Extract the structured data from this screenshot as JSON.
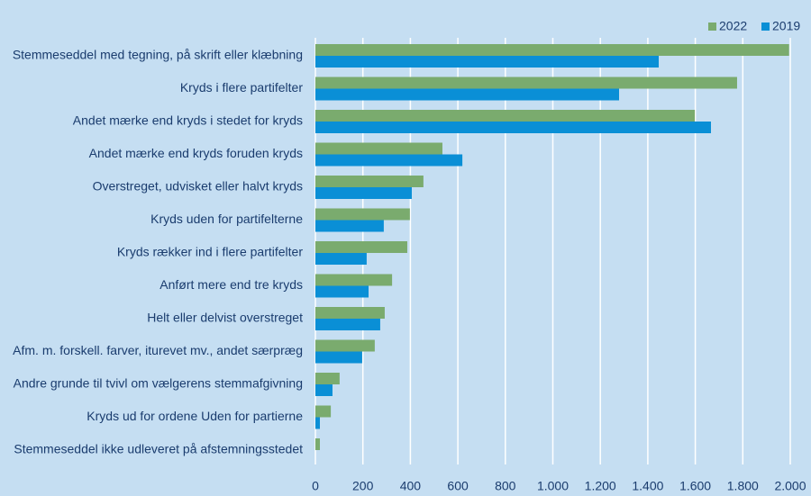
{
  "chart_data": {
    "type": "hbar",
    "categories": [
      "Stemmeseddel med tegning, på skrift eller klæbning",
      "Kryds i flere partifelter",
      "Andet mærke end kryds i stedet for kryds",
      "Andet mærke end kryds foruden kryds",
      "Overstreget, udvisket eller halvt kryds",
      "Kryds uden for partifelterne",
      "Kryds rækker ind i flere partifelter",
      "Anført mere end tre kryds",
      "Helt eller delvist overstreget",
      "Afm. m. forskell. farver, iturevet mv., andet særpræg",
      "Andre grunde til tvivl om vælgerens stemmafgivning",
      "Kryds ud for ordene Uden for partierne",
      "Stemmeseddel ikke udleveret på afstemningsstedet"
    ],
    "series": [
      {
        "name": "2022",
        "color": "#7aab6e",
        "values": [
          1995,
          1776,
          1598,
          535,
          455,
          398,
          387,
          323,
          292,
          250,
          102,
          65,
          19
        ]
      },
      {
        "name": "2019",
        "color": "#0a8fd6",
        "values": [
          1446,
          1279,
          1666,
          619,
          406,
          288,
          216,
          224,
          273,
          197,
          72,
          19,
          null
        ]
      }
    ],
    "xlim": [
      0,
      2000
    ],
    "xticks": [
      0,
      200,
      400,
      600,
      800,
      {
        "value": 1000,
        "label": "1.000"
      },
      {
        "value": 1200,
        "label": "1.200"
      },
      {
        "value": 1400,
        "label": "1.400"
      },
      {
        "value": 1600,
        "label": "1.600"
      },
      {
        "value": 1800,
        "label": "1.800"
      },
      {
        "value": 2000,
        "label": "2.000"
      }
    ],
    "grid": true,
    "legend": "top-right"
  }
}
